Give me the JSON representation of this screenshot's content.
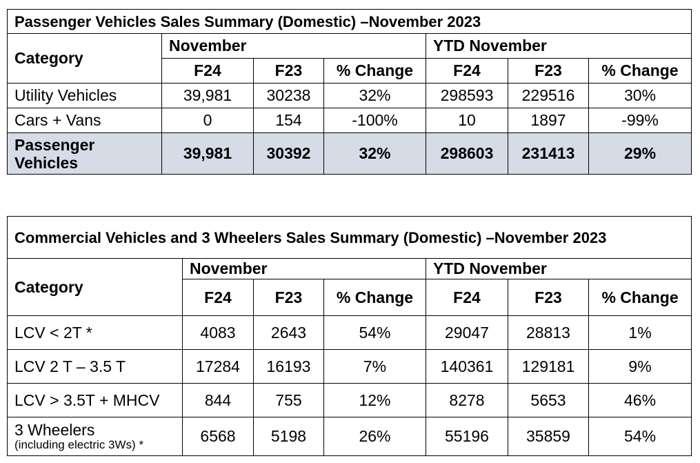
{
  "pv": {
    "title": "Passenger Vehicles Sales Summary (Domestic) –November 2023",
    "category_header": "Category",
    "group_month": "November",
    "group_ytd": "YTD November",
    "columns": [
      "F24",
      "F23",
      "% Change",
      "F24",
      "F23",
      "% Change"
    ],
    "rows": [
      {
        "category": "Utility Vehicles",
        "values": [
          "39,981",
          "30238",
          "32%",
          "298593",
          "229516",
          "30%"
        ]
      },
      {
        "category": "Cars + Vans",
        "values": [
          "0",
          "154",
          "-100%",
          "10",
          "1897",
          "-99%"
        ]
      }
    ],
    "total": {
      "category": "Passenger Vehicles",
      "values": [
        "39,981",
        "30392",
        "32%",
        "298603",
        "231413",
        "29%"
      ]
    }
  },
  "cv": {
    "title": "Commercial Vehicles and 3 Wheelers Sales Summary (Domestic) –November 2023",
    "category_header": "Category",
    "group_month": "November",
    "group_ytd": "YTD November",
    "columns": [
      "F24",
      "F23",
      "% Change",
      "F24",
      "F23",
      "% Change"
    ],
    "rows": [
      {
        "category": "LCV < 2T *",
        "note": "",
        "values": [
          "4083",
          "2643",
          "54%",
          "29047",
          "28813",
          "1%"
        ]
      },
      {
        "category": "LCV 2 T – 3.5 T",
        "note": "",
        "values": [
          "17284",
          "16193",
          "7%",
          "140361",
          "129181",
          "9%"
        ]
      },
      {
        "category": "LCV > 3.5T + MHCV",
        "note": "",
        "values": [
          "844",
          "755",
          "12%",
          "8278",
          "5653",
          "46%"
        ]
      },
      {
        "category": "3 Wheelers",
        "note": "(including electric 3Ws) *",
        "values": [
          "6568",
          "5198",
          "26%",
          "55196",
          "35859",
          "54%"
        ]
      }
    ]
  }
}
